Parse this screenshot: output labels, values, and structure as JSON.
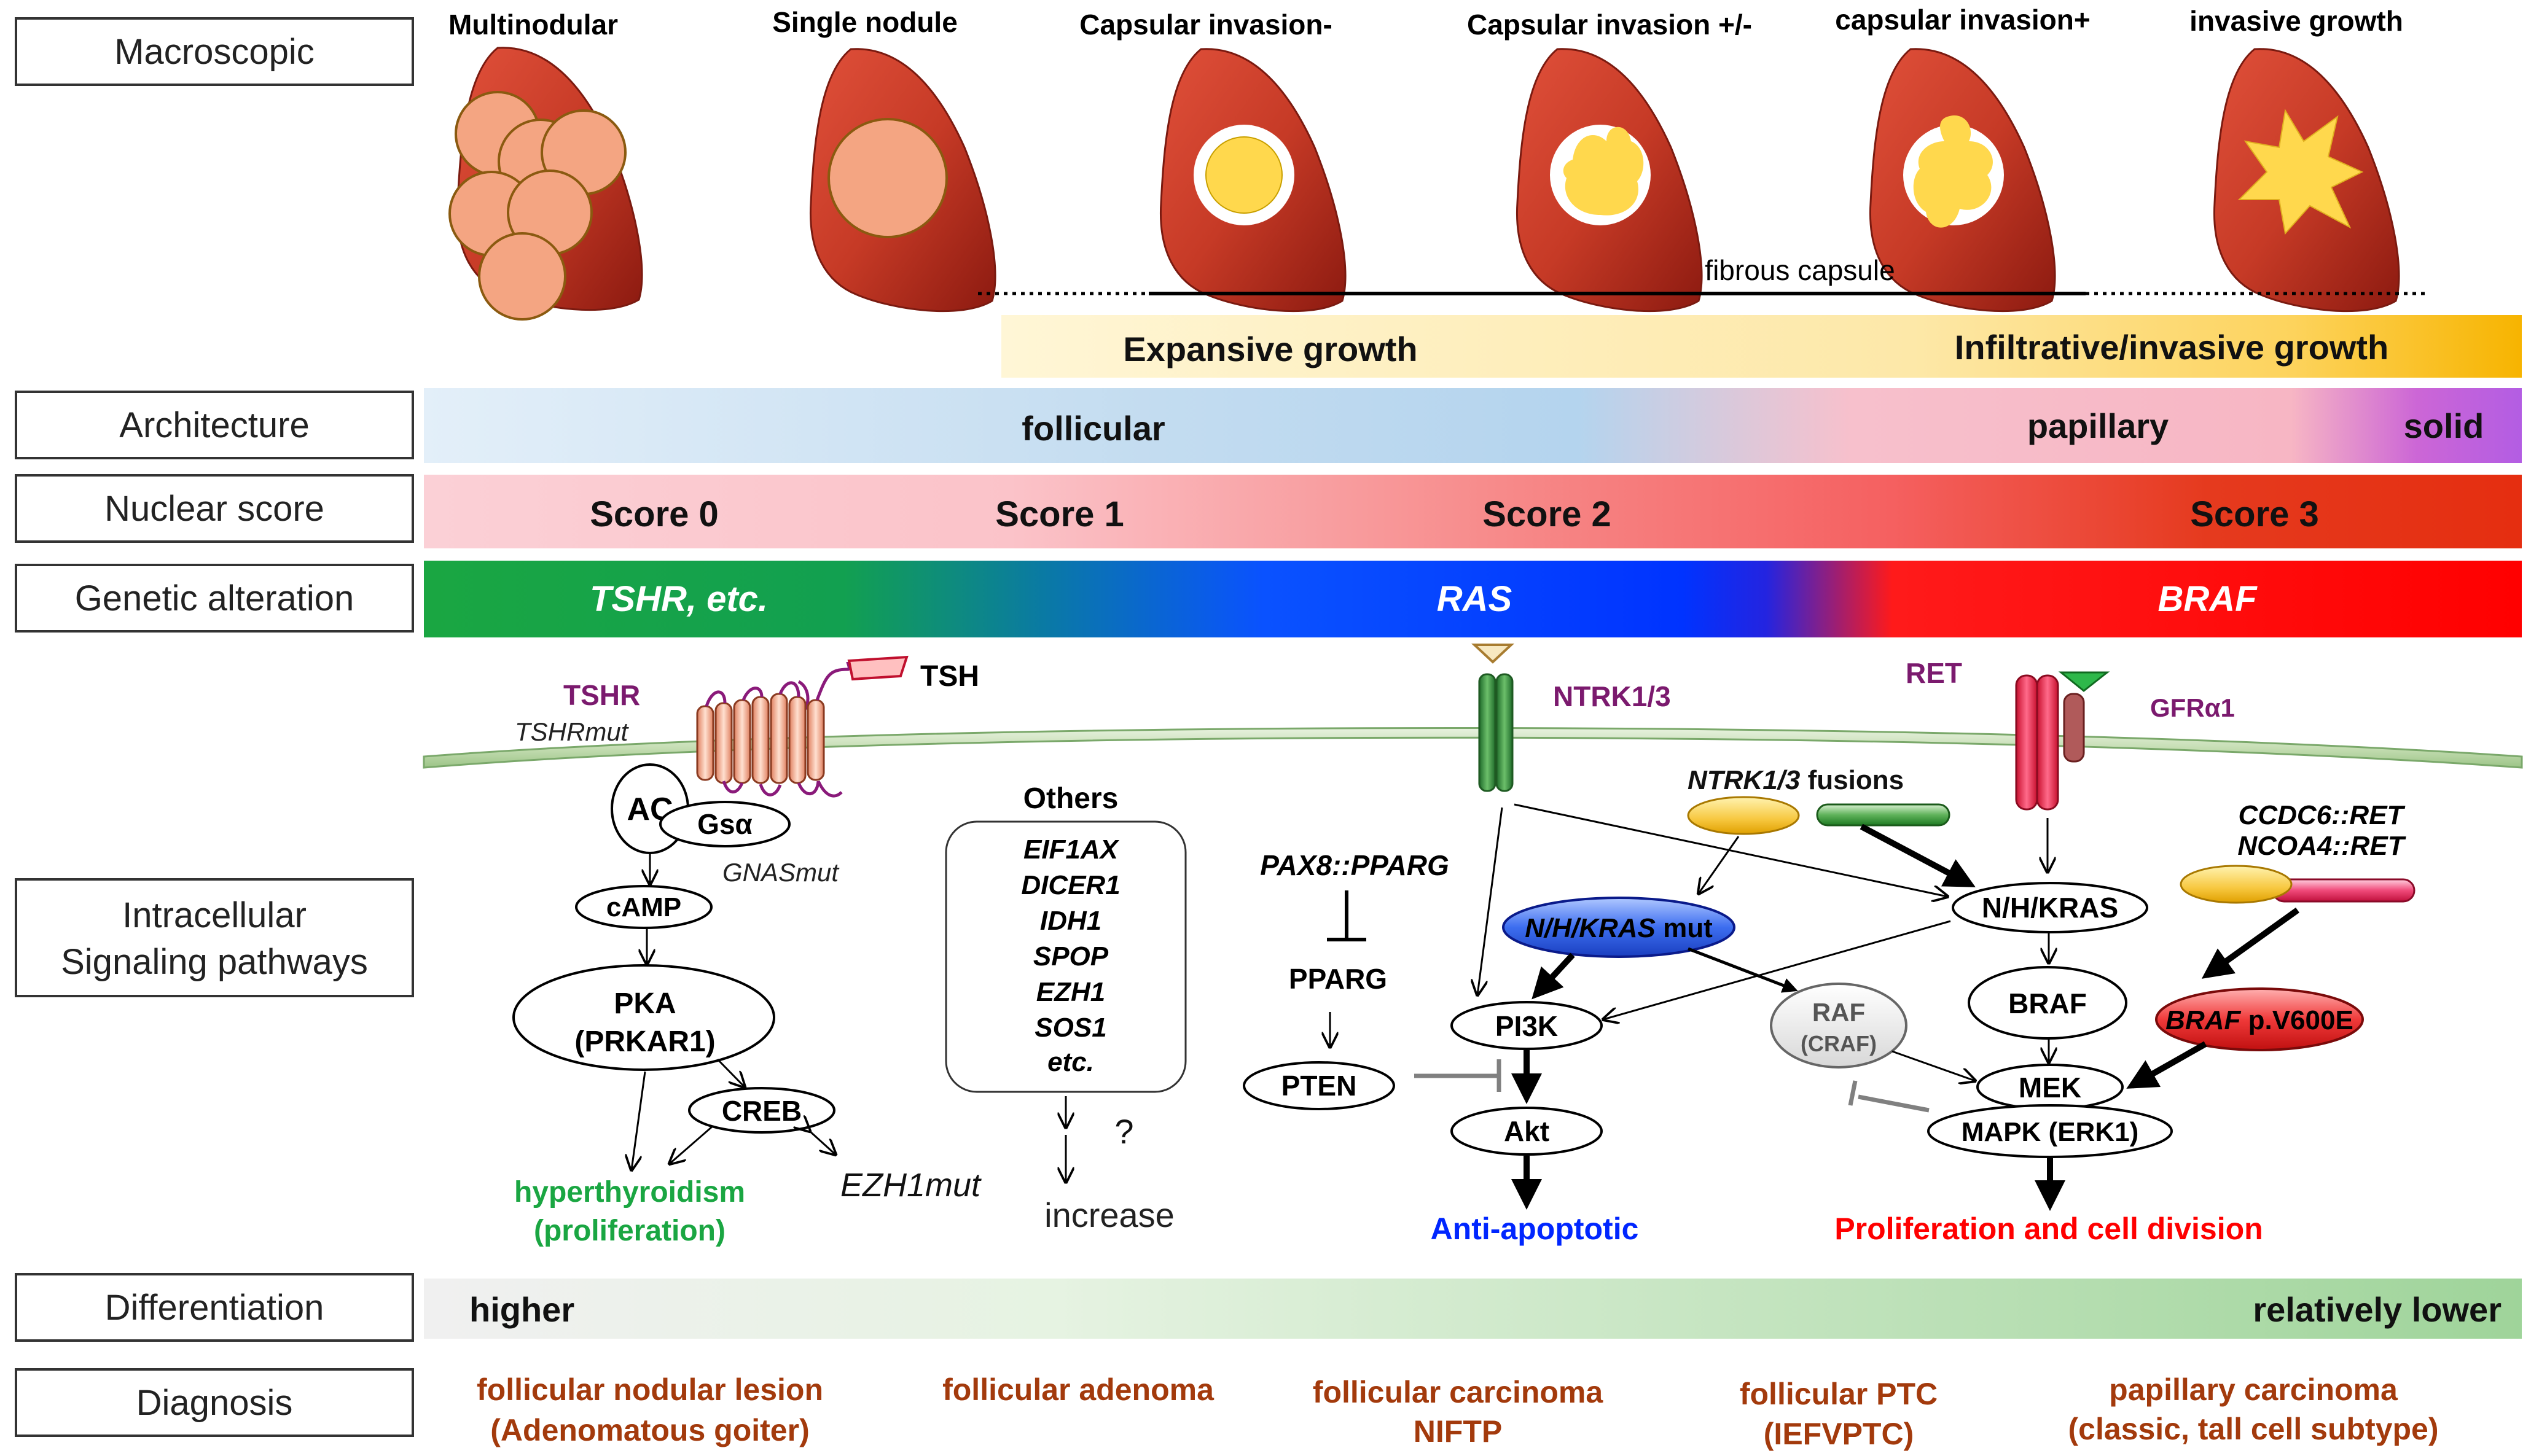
{
  "row_labels": {
    "macroscopic": "Macroscopic",
    "architecture": "Architecture",
    "nuclear_score": "Nuclear score",
    "genetic_alteration": "Genetic alteration",
    "signaling_1": "Intracellular",
    "signaling_2": "Signaling pathways",
    "differentiation": "Differentiation",
    "diagnosis": "Diagnosis"
  },
  "macroscopic": {
    "stages": [
      "Multinodular",
      "Single nodule",
      "Capsular invasion-",
      "Capsular invasion +/-",
      "capsular invasion+",
      "invasive growth"
    ],
    "fibrous_capsule": "fibrous capsule"
  },
  "growth_bar": {
    "left": "Expansive growth",
    "right": "Infiltrative/invasive growth"
  },
  "architecture": {
    "follicular": "follicular",
    "papillary": "papillary",
    "solid": "solid"
  },
  "nuclear": {
    "s0": "Score 0",
    "s1": "Score 1",
    "s2": "Score 2",
    "s3": "Score 3"
  },
  "genetic": {
    "tshr": "TSHR, etc.",
    "ras": "RAS",
    "braf": "BRAF"
  },
  "pathways": {
    "tshr": "TSHR",
    "tshrmut": "TSHRmut",
    "tsh": "TSH",
    "ac": "AC",
    "gsa": "Gsα",
    "gnasmut": "GNASmut",
    "camp": "cAMP",
    "pka_1": "PKA",
    "pka_2": "(PRKAR1)",
    "creb": "CREB",
    "ezh1mut": "EZH1mut",
    "hyper_1": "hyperthyroidism",
    "hyper_2": "(proliferation)",
    "others_title": "Others",
    "others_list": [
      "EIF1AX",
      "DICER1",
      "IDH1",
      "SPOP",
      "EZH1",
      "SOS1",
      "etc."
    ],
    "question": "?",
    "increase": "increase",
    "ntrk": "NTRK1/3",
    "ret": "RET",
    "gfra1": "GFRα1",
    "ntrk_fusions_1": "NTRK1/3",
    "ntrk_fusions_2": " fusions",
    "ccdc6": "CCDC6::RET",
    "ncoa4": "NCOA4::RET",
    "pax8": "PAX8::PPARG",
    "pparg": "PPARG",
    "pten": "PTEN",
    "nhkras_mut_1": "N/H/KRAS",
    "nhkras_mut_2": " mut",
    "pi3k": "PI3K",
    "akt": "Akt",
    "anti_apoptotic": "Anti-apoptotic",
    "nhkras": "N/H/KRAS",
    "raf_1": "RAF",
    "raf_2": "(CRAF)",
    "braf": "BRAF",
    "braf_v600e_1": "BRAF",
    "braf_v600e_2": " p.V600E",
    "mek": "MEK",
    "mapk": "MAPK (ERK1)",
    "proliferation": "Proliferation and cell division"
  },
  "differentiation": {
    "high": "higher",
    "low": "relatively lower"
  },
  "diagnosis": [
    [
      "follicular nodular lesion",
      "(Adenomatous goiter)"
    ],
    [
      "follicular adenoma"
    ],
    [
      "follicular carcinoma",
      "NIFTP"
    ],
    [
      "follicular PTC",
      "(IEFVPTC)"
    ],
    [
      "papillary carcinoma",
      "(classic, tall cell subtype)"
    ]
  ],
  "colors": {
    "thyroid": "#c0392b",
    "nodule": "#f4a582",
    "tumor": "#ffd84d",
    "diagnosis": "#a33a0c",
    "green": "#1aa642",
    "blue": "#0026ff",
    "red": "#ff0000",
    "purple": "#7b1a6e"
  }
}
